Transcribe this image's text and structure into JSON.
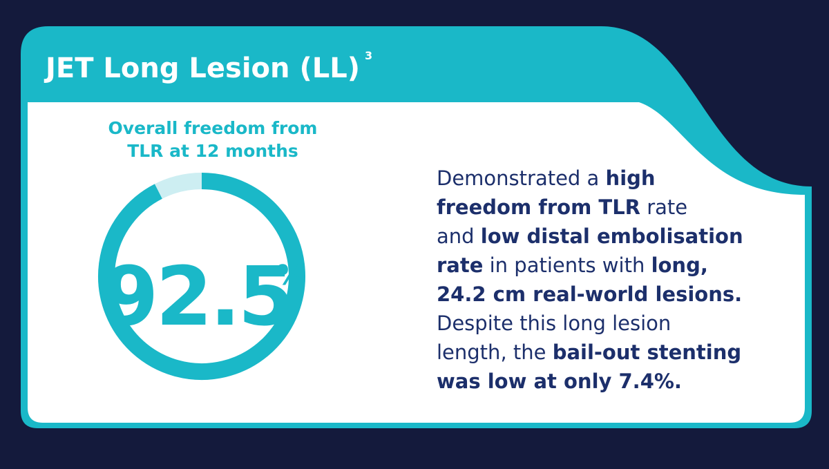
{
  "header": {
    "title": "JET Long Lesion (LL)",
    "superscript": "3"
  },
  "chart_data": {
    "type": "gauge",
    "title": [
      "Overall freedom from",
      "TLR at 12 months"
    ],
    "value": 92.5,
    "unit": "%",
    "ylim": [
      0,
      100
    ],
    "color": "#1ab8c8",
    "track_color": "#cdeef2"
  },
  "description": [
    [
      {
        "text": "Demonstrated a ",
        "bold": false
      },
      {
        "text": "high",
        "bold": true
      }
    ],
    [
      {
        "text": "freedom from TLR",
        "bold": true
      },
      {
        "text": " rate",
        "bold": false
      }
    ],
    [
      {
        "text": "and ",
        "bold": false
      },
      {
        "text": "low distal embolisation",
        "bold": true
      }
    ],
    [
      {
        "text": "rate",
        "bold": true
      },
      {
        "text": " in patients with ",
        "bold": false
      },
      {
        "text": "long,",
        "bold": true
      }
    ],
    [
      {
        "text": "24.2 cm real-world lesions.",
        "bold": true
      }
    ],
    [
      {
        "text": "Despite this long lesion",
        "bold": false
      }
    ],
    [
      {
        "text": "length, the ",
        "bold": false
      },
      {
        "text": "bail-out stenting",
        "bold": true
      }
    ],
    [
      {
        "text": "was low at only 7.4%.",
        "bold": true
      }
    ]
  ]
}
